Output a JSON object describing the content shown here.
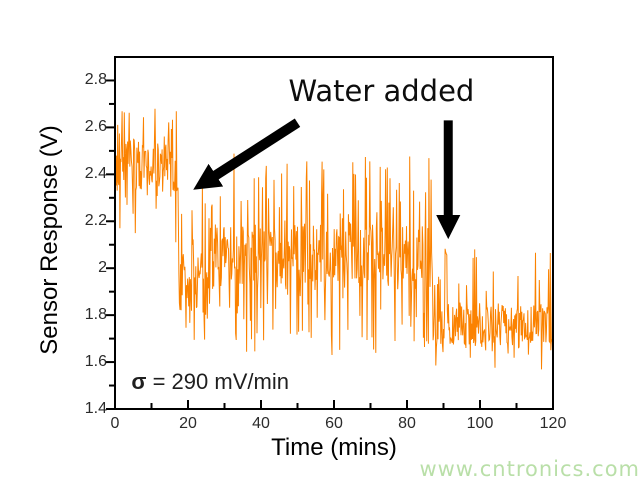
{
  "watermark": {
    "text": "www.cntronics.com",
    "color": "#b9dfa8"
  },
  "chart_data": {
    "type": "line",
    "title": "",
    "xlabel": "Time (mins)",
    "ylabel": "Sensor Response (V)",
    "xlim": [
      0,
      120
    ],
    "ylim": [
      1.4,
      2.9
    ],
    "x_ticks": [
      0,
      20,
      40,
      60,
      80,
      100,
      120
    ],
    "x_tick_labels": [
      "0",
      "20",
      "40",
      "60",
      "80",
      "100",
      "120"
    ],
    "x_minor_ticks": [
      10,
      30,
      50,
      70,
      90,
      110
    ],
    "y_ticks": [
      1.4,
      1.6,
      1.8,
      2.0,
      2.2,
      2.4,
      2.6,
      2.8
    ],
    "y_tick_labels": [
      "1.4",
      "1.6",
      "1.8",
      "2",
      "2.2",
      "2.4",
      "2.6",
      "2.8"
    ],
    "y_minor_ticks": [
      1.5,
      1.7,
      1.9,
      2.1,
      2.3,
      2.5,
      2.7
    ],
    "grid": false,
    "legend": null,
    "line_color": "#FB8200",
    "axis_color": "#000000",
    "annotation_color": "#000000",
    "series_description": "Single noisy sensor-voltage trace: baseline ~2.4 V from 0-17.5 min, drops to ~2.0 V after first water addition (~18 min), drops to ~1.75 V after second water addition (~87 min), ends at 120 min",
    "annotations": [
      {
        "id": "water-added",
        "text": "Water added",
        "x": 73,
        "y": 2.757
      },
      {
        "id": "sigma",
        "symbol": "σ",
        "rest": " = 290 mV/min",
        "x": 4.5,
        "y": 1.513
      }
    ],
    "arrows": [
      {
        "name": "water-arrow-diagonal",
        "from_x": 50,
        "from_y": 2.62,
        "to_x": 21.5,
        "to_y": 2.335,
        "stroke_width": 10
      },
      {
        "name": "water-arrow-vertical",
        "from_x": 91.3,
        "from_y": 2.63,
        "to_x": 91.3,
        "to_y": 2.125,
        "stroke_width": 9
      }
    ],
    "noise_model": {
      "seed": 7,
      "step_min": 0.15,
      "segments": [
        {
          "x_start": 0,
          "x_end": 17.5,
          "base": 2.42,
          "jitter": 0.13,
          "spike_prob": 0.22,
          "spike_up": 0.3,
          "spike_down": 0.28,
          "y_min": 2.06,
          "y_max": 2.77
        },
        {
          "x_start": 17.5,
          "x_end": 26,
          "base": 1.95,
          "jitter": 0.15,
          "spike_prob": 0.3,
          "spike_up": 0.35,
          "spike_down": 0.33,
          "y_min": 1.58,
          "y_max": 2.38
        },
        {
          "x_start": 26,
          "x_end": 87,
          "base": 2.05,
          "jitter": 0.14,
          "spike_prob": 0.28,
          "spike_up": 0.43,
          "spike_down": 0.4,
          "y_min": 1.62,
          "y_max": 2.5
        },
        {
          "x_start": 87,
          "x_end": 120,
          "base": 1.76,
          "jitter": 0.09,
          "spike_prob": 0.2,
          "spike_up": 0.3,
          "spike_down": 0.17,
          "y_min": 1.55,
          "y_max": 2.1
        }
      ]
    }
  }
}
